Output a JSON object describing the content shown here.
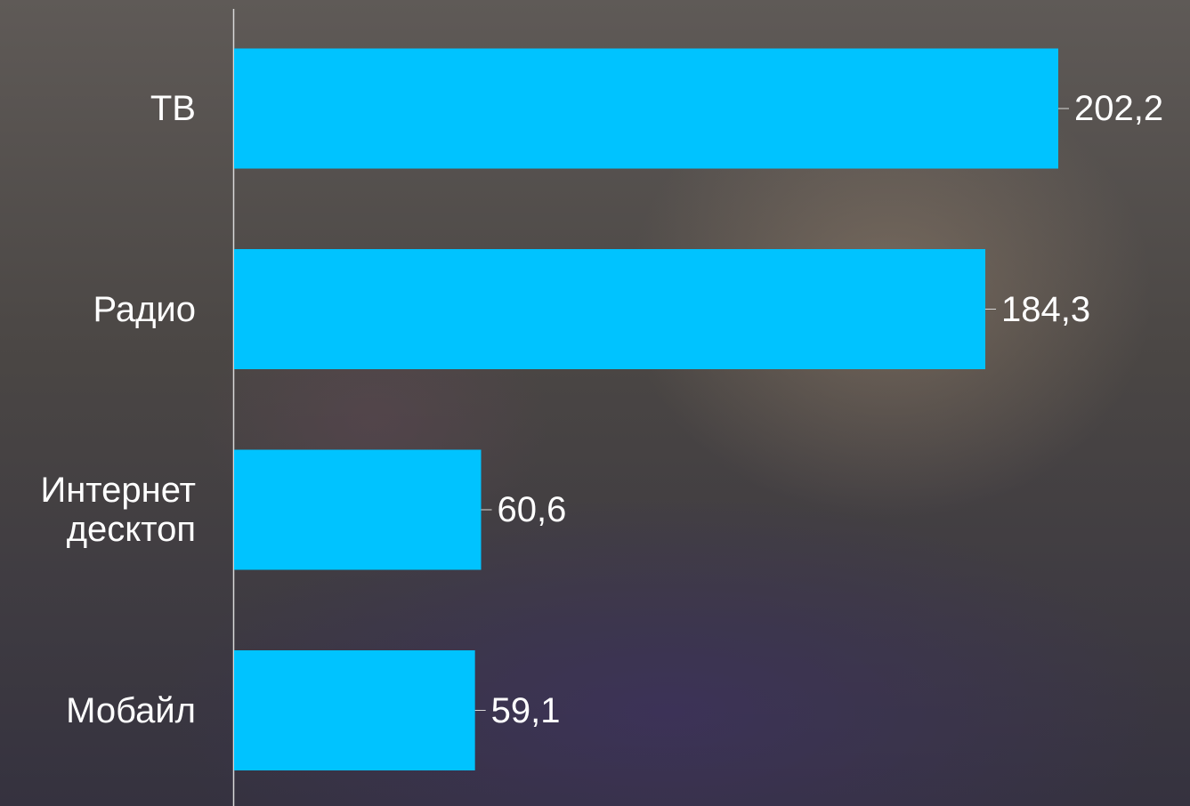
{
  "chart_data": {
    "type": "hbar",
    "categories": [
      "ТВ",
      "Радио",
      "Интернет десктоп",
      "Мобайл"
    ],
    "values": [
      202.2,
      184.3,
      60.6,
      59.1
    ],
    "value_labels": [
      "202,2",
      "184,3",
      "60,6",
      "59,1"
    ],
    "color": "#00c3ff"
  }
}
